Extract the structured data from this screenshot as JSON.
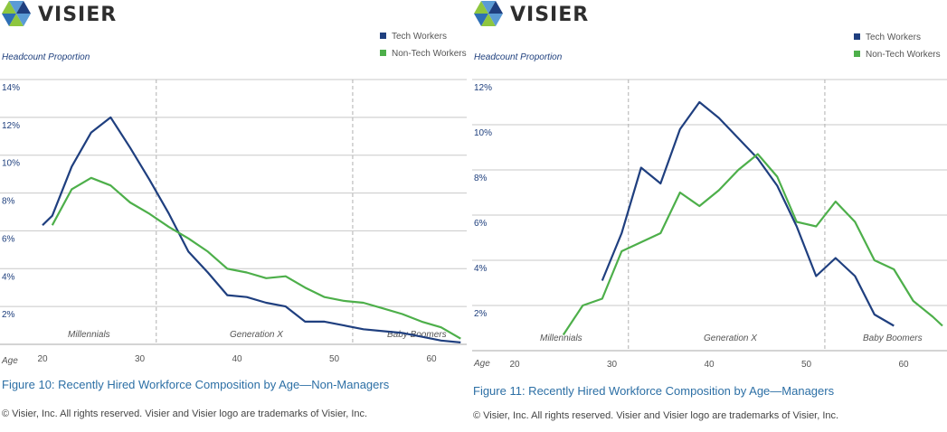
{
  "brand": {
    "name": "VISIER"
  },
  "colors": {
    "tech": "#1f3f7f",
    "nontech": "#4daf4a",
    "grid": "#c8c8c8",
    "caption": "#2c6fa5"
  },
  "panels": [
    {
      "caption": "Figure 10: Recently Hired Workforce Composition by Age—Non-Managers",
      "copyright": "© Visier, Inc. All rights reserved. Visier and Visier logo are trademarks of Visier, Inc.",
      "chart_data": {
        "type": "line",
        "title": "",
        "ylabel": "Headcount Proportion",
        "xlabel": "Age",
        "xlim": [
          17,
          64
        ],
        "ylim": [
          0,
          14
        ],
        "xticks": [
          "20",
          "30",
          "40",
          "50",
          "60"
        ],
        "yticks": [
          "2%",
          "4%",
          "6%",
          "8%",
          "10%",
          "12%",
          "14%"
        ],
        "generation_dividers": [
          31.7,
          51.9
        ],
        "generations": [
          "Millennials",
          "Generation X",
          "Baby Boomers"
        ],
        "legend": "top-right",
        "series": [
          {
            "name": "Tech Workers",
            "x": [
              20,
              21,
              23,
              25,
              27,
              29,
              31,
              33,
              35,
              37,
              39,
              41,
              43,
              45,
              47,
              49,
              51,
              53,
              55,
              57,
              59,
              61,
              63
            ],
            "y": [
              6.3,
              6.8,
              9.4,
              11.2,
              12.0,
              10.4,
              8.7,
              6.9,
              4.9,
              3.8,
              2.6,
              2.5,
              2.2,
              2.0,
              1.2,
              1.2,
              1.0,
              0.8,
              0.7,
              0.6,
              0.4,
              0.2,
              0.1
            ]
          },
          {
            "name": "Non-Tech Workers",
            "x": [
              21,
              23,
              25,
              27,
              29,
              31,
              33,
              35,
              37,
              39,
              41,
              43,
              45,
              47,
              49,
              51,
              53,
              55,
              57,
              59,
              61,
              63
            ],
            "y": [
              6.3,
              8.2,
              8.8,
              8.4,
              7.5,
              6.9,
              6.2,
              5.6,
              4.9,
              4.0,
              3.8,
              3.5,
              3.6,
              3.0,
              2.5,
              2.3,
              2.2,
              1.9,
              1.6,
              1.2,
              0.9,
              0.3
            ]
          }
        ]
      }
    },
    {
      "caption": "Figure 11: Recently Hired Workforce Composition by Age—Managers",
      "copyright": "© Visier, Inc. All rights reserved. Visier and Visier logo are trademarks of Visier, Inc.",
      "chart_data": {
        "type": "line",
        "title": "",
        "ylabel": "Headcount Proportion",
        "xlabel": "Age",
        "xlim": [
          16,
          64
        ],
        "ylim": [
          0,
          12
        ],
        "xticks": [
          "20",
          "30",
          "40",
          "50",
          "60"
        ],
        "yticks": [
          "2%",
          "4%",
          "6%",
          "8%",
          "10%",
          "12%"
        ],
        "generation_dividers": [
          31.7,
          51.9
        ],
        "generations": [
          "Millennials",
          "Generation X",
          "Baby Boomers"
        ],
        "legend": "top-right",
        "series": [
          {
            "name": "Tech Workers",
            "x": [
              29,
              31,
              33,
              35,
              37,
              39,
              41,
              43,
              45,
              47,
              49,
              51,
              53,
              55,
              57,
              59
            ],
            "y": [
              3.1,
              5.2,
              8.1,
              7.4,
              9.8,
              11.0,
              10.3,
              9.4,
              8.5,
              7.3,
              5.5,
              3.3,
              4.1,
              3.3,
              1.6,
              1.1
            ]
          },
          {
            "name": "Non-Tech Workers",
            "x": [
              25,
              27,
              29,
              31,
              33,
              35,
              37,
              39,
              41,
              43,
              45,
              47,
              49,
              51,
              53,
              55,
              57,
              59,
              61,
              63,
              64
            ],
            "y": [
              0.7,
              2.0,
              2.3,
              4.4,
              4.8,
              5.2,
              7.0,
              6.4,
              7.1,
              8.0,
              8.7,
              7.7,
              5.7,
              5.5,
              6.6,
              5.7,
              4.0,
              3.6,
              2.2,
              1.5,
              1.1
            ]
          }
        ]
      }
    }
  ]
}
